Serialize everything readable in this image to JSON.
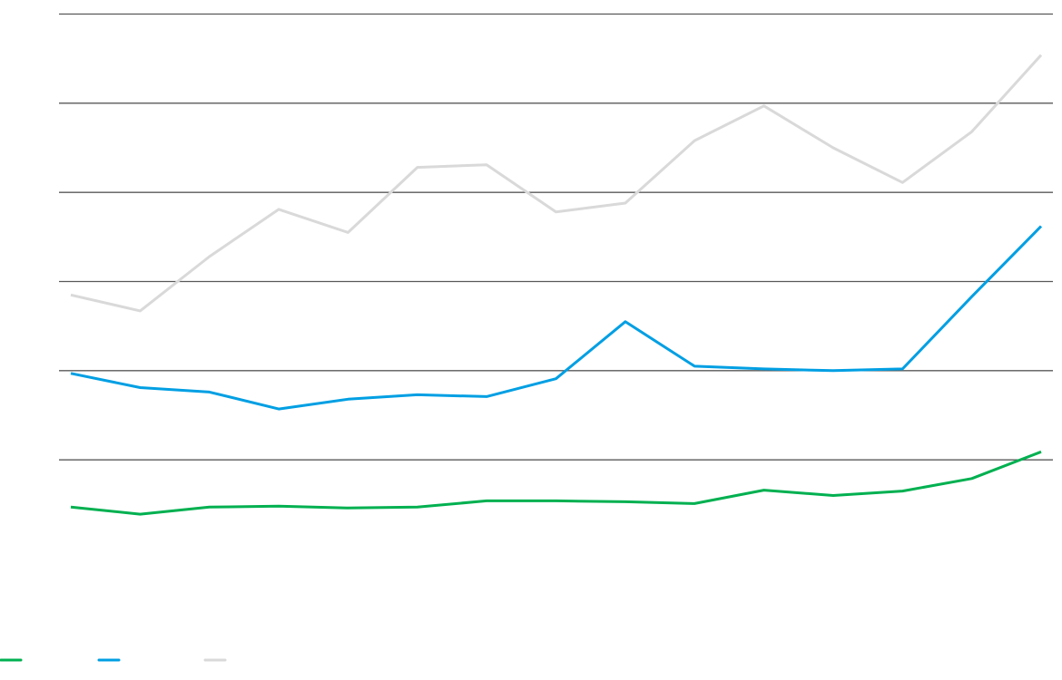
{
  "chart_data": {
    "type": "line",
    "title": "",
    "xlabel": "",
    "ylabel": "",
    "x": [
      1,
      2,
      3,
      4,
      5,
      6,
      7,
      8,
      9,
      10,
      11,
      12,
      13,
      14,
      15
    ],
    "ylim": [
      0,
      6
    ],
    "gridlines": [
      1,
      2,
      3,
      4,
      5,
      6
    ],
    "grid": true,
    "legend_placement": "bottom-left",
    "series": [
      {
        "color": "#00b050",
        "values": [
          0.47,
          0.39,
          0.47,
          0.48,
          0.46,
          0.47,
          0.54,
          0.54,
          0.53,
          0.51,
          0.66,
          0.6,
          0.65,
          0.79,
          1.09
        ]
      },
      {
        "color": "#009fe3",
        "values": [
          1.97,
          1.81,
          1.76,
          1.57,
          1.68,
          1.73,
          1.71,
          1.91,
          2.55,
          2.05,
          2.02,
          2.0,
          2.02,
          2.83,
          3.62
        ]
      },
      {
        "color": "#d9d9d9",
        "values": [
          2.85,
          2.67,
          3.28,
          3.81,
          3.55,
          4.28,
          4.31,
          3.78,
          3.88,
          4.58,
          4.97,
          4.5,
          4.11,
          4.68,
          5.54
        ]
      }
    ]
  }
}
